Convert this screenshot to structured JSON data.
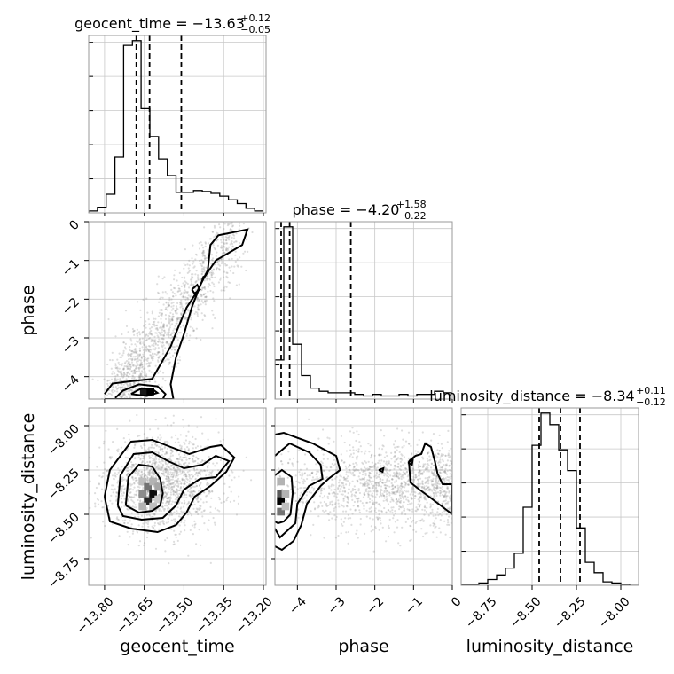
{
  "chart_data": {
    "type": "corner",
    "parameters": [
      "geocent_time",
      "phase",
      "luminosity_distance"
    ],
    "axis_labels": {
      "geocent_time": "geocent_time",
      "phase": "phase",
      "luminosity_distance": "luminosity_distance"
    },
    "ranges": {
      "geocent_time": [
        -13.86,
        -13.19
      ],
      "phase": [
        -4.58,
        0.0
      ],
      "luminosity_distance": [
        -8.9,
        -7.9
      ]
    },
    "ticks": {
      "geocent_time": [
        {
          "v": -13.8,
          "label": "−13.80"
        },
        {
          "v": -13.65,
          "label": "−13.65"
        },
        {
          "v": -13.5,
          "label": "−13.50"
        },
        {
          "v": -13.35,
          "label": "−13.35"
        },
        {
          "v": -13.2,
          "label": "−13.20"
        }
      ],
      "phase": [
        {
          "v": -4,
          "label": "−4"
        },
        {
          "v": -3,
          "label": "−3"
        },
        {
          "v": -2,
          "label": "−2"
        },
        {
          "v": -1,
          "label": "−1"
        },
        {
          "v": 0,
          "label": "0"
        }
      ],
      "luminosity_distance": [
        {
          "v": -8.75,
          "label": "−8.75"
        },
        {
          "v": -8.5,
          "label": "−8.50"
        },
        {
          "v": -8.25,
          "label": "−8.25"
        },
        {
          "v": -8.0,
          "label": "−8.00"
        }
      ]
    },
    "titles": [
      {
        "name": "geocent_time",
        "main": "geocent_time = −13.63",
        "plus": "+0.12",
        "minus": "−0.05"
      },
      {
        "name": "phase",
        "main": "phase = −4.20",
        "plus": "+1.58",
        "minus": "−0.22"
      },
      {
        "name": "luminosity_distance",
        "main": "luminosity_distance = −8.34",
        "plus": "+0.11",
        "minus": "−0.12"
      }
    ],
    "histograms": {
      "geocent_time": {
        "edges_start": -13.86,
        "edges_step": 0.033,
        "counts": [
          2,
          6,
          20,
          60,
          180,
          185,
          112,
          82,
          58,
          40,
          22,
          22,
          24,
          23,
          21,
          18,
          14,
          10,
          5,
          2
        ],
        "quantiles": [
          -13.68,
          -13.63,
          -13.51
        ]
      },
      "phase": {
        "edges_start": -4.58,
        "edges_step": 0.229,
        "counts": [
          25,
          110,
          35,
          15,
          7,
          5,
          4,
          4,
          4,
          3,
          2,
          3,
          2,
          2,
          3,
          2,
          3,
          3,
          5,
          4
        ],
        "quantiles": [
          -4.42,
          -4.2,
          -2.62
        ]
      },
      "luminosity_distance": {
        "edges_start": -8.9,
        "edges_step": 0.05,
        "counts": [
          1,
          1,
          2,
          5,
          9,
          15,
          28,
          68,
          122,
          150,
          140,
          118,
          100,
          50,
          20,
          11,
          3,
          2,
          1,
          0
        ],
        "quantiles": [
          -8.46,
          -8.34,
          -8.23
        ]
      }
    },
    "hist2d_cells": {
      "geocent_time-phase": [
        {
          "x": -13.655,
          "y": -4.36,
          "level": 0.9
        },
        {
          "x": -13.63,
          "y": -4.36,
          "level": 1.0
        }
      ],
      "geocent_time-luminosity_distance": [
        {
          "x": -13.66,
          "y": -8.31,
          "level": 0.25
        },
        {
          "x": -13.66,
          "y": -8.38,
          "level": 0.45
        },
        {
          "x": -13.64,
          "y": -8.34,
          "level": 0.55
        },
        {
          "x": -13.62,
          "y": -8.38,
          "level": 0.95
        },
        {
          "x": -13.64,
          "y": -8.42,
          "level": 0.85
        },
        {
          "x": -13.62,
          "y": -8.31,
          "level": 0.3
        },
        {
          "x": -13.6,
          "y": -8.34,
          "level": 0.35
        },
        {
          "x": -13.66,
          "y": -8.45,
          "level": 0.3
        },
        {
          "x": -13.62,
          "y": -8.45,
          "level": 0.25
        },
        {
          "x": -13.6,
          "y": -8.41,
          "level": 0.2
        }
      ],
      "phase-luminosity_distance": [
        {
          "x": -4.45,
          "y": -8.31,
          "level": 0.3
        },
        {
          "x": -4.45,
          "y": -8.38,
          "level": 0.65
        },
        {
          "x": -4.45,
          "y": -8.42,
          "level": 1.0
        },
        {
          "x": -4.45,
          "y": -8.48,
          "level": 0.55
        },
        {
          "x": -4.33,
          "y": -8.38,
          "level": 0.3
        },
        {
          "x": -4.33,
          "y": -8.45,
          "level": 0.25
        }
      ]
    },
    "contours": {
      "geocent_time-phase": [
        [
          [
            -13.8,
            -4.45
          ],
          [
            -13.77,
            -4.18
          ],
          [
            -13.7,
            -4.12
          ],
          [
            -13.62,
            -4.06
          ],
          [
            -13.58,
            -3.58
          ],
          [
            -13.55,
            -3.22
          ],
          [
            -13.52,
            -2.7
          ],
          [
            -13.49,
            -2.22
          ],
          [
            -13.45,
            -1.8
          ],
          [
            -13.41,
            -1.25
          ],
          [
            -13.4,
            -0.6
          ],
          [
            -13.37,
            -0.35
          ],
          [
            -13.26,
            -0.2
          ],
          [
            -13.28,
            -0.6
          ],
          [
            -13.38,
            -1.0
          ],
          [
            -13.43,
            -1.5
          ],
          [
            -13.47,
            -2.2
          ],
          [
            -13.5,
            -2.9
          ],
          [
            -13.53,
            -3.5
          ],
          [
            -13.55,
            -4.2
          ],
          [
            -13.54,
            -4.58
          ],
          [
            -13.8,
            -4.58
          ]
        ],
        [
          [
            -13.76,
            -4.55
          ],
          [
            -13.73,
            -4.36
          ],
          [
            -13.67,
            -4.2
          ],
          [
            -13.6,
            -4.25
          ],
          [
            -13.57,
            -4.45
          ],
          [
            -13.58,
            -4.58
          ],
          [
            -13.76,
            -4.58
          ]
        ],
        [
          [
            -13.7,
            -4.45
          ],
          [
            -13.66,
            -4.3
          ],
          [
            -13.62,
            -4.32
          ],
          [
            -13.6,
            -4.42
          ],
          [
            -13.64,
            -4.5
          ],
          [
            -13.7,
            -4.45
          ]
        ],
        [
          [
            -13.47,
            -1.75
          ],
          [
            -13.45,
            -1.63
          ],
          [
            -13.44,
            -1.75
          ],
          [
            -13.46,
            -1.85
          ],
          [
            -13.47,
            -1.75
          ]
        ],
        [
          [
            -13.43,
            -1.44
          ],
          [
            -13.42,
            -1.4
          ],
          [
            -13.43,
            -1.47
          ],
          [
            -13.43,
            -1.44
          ]
        ]
      ],
      "geocent_time-luminosity_distance": [
        [
          [
            -13.72,
            -8.45
          ],
          [
            -13.71,
            -8.29
          ],
          [
            -13.67,
            -8.22
          ],
          [
            -13.62,
            -8.23
          ],
          [
            -13.59,
            -8.3
          ],
          [
            -13.58,
            -8.38
          ],
          [
            -13.59,
            -8.45
          ],
          [
            -13.62,
            -8.48
          ],
          [
            -13.67,
            -8.49
          ],
          [
            -13.72,
            -8.45
          ]
        ],
        [
          [
            -13.75,
            -8.45
          ],
          [
            -13.74,
            -8.28
          ],
          [
            -13.69,
            -8.16
          ],
          [
            -13.62,
            -8.15
          ],
          [
            -13.56,
            -8.2
          ],
          [
            -13.5,
            -8.24
          ],
          [
            -13.43,
            -8.22
          ],
          [
            -13.38,
            -8.17
          ],
          [
            -13.33,
            -8.2
          ],
          [
            -13.38,
            -8.29
          ],
          [
            -13.44,
            -8.3
          ],
          [
            -13.5,
            -8.36
          ],
          [
            -13.53,
            -8.45
          ],
          [
            -13.58,
            -8.52
          ],
          [
            -13.66,
            -8.53
          ],
          [
            -13.73,
            -8.51
          ],
          [
            -13.75,
            -8.45
          ]
        ],
        [
          [
            -13.8,
            -8.4
          ],
          [
            -13.78,
            -8.25
          ],
          [
            -13.7,
            -8.09
          ],
          [
            -13.62,
            -8.08
          ],
          [
            -13.55,
            -8.12
          ],
          [
            -13.48,
            -8.16
          ],
          [
            -13.4,
            -8.12
          ],
          [
            -13.36,
            -8.11
          ],
          [
            -13.31,
            -8.18
          ],
          [
            -13.34,
            -8.26
          ],
          [
            -13.4,
            -8.34
          ],
          [
            -13.46,
            -8.4
          ],
          [
            -13.49,
            -8.49
          ],
          [
            -13.53,
            -8.56
          ],
          [
            -13.6,
            -8.6
          ],
          [
            -13.7,
            -8.58
          ],
          [
            -13.78,
            -8.54
          ],
          [
            -13.8,
            -8.4
          ]
        ]
      ],
      "phase-luminosity_distance": [
        [
          [
            -4.58,
            -8.28
          ],
          [
            -4.4,
            -8.25
          ],
          [
            -4.15,
            -8.29
          ],
          [
            -4.12,
            -8.38
          ],
          [
            -4.18,
            -8.5
          ],
          [
            -4.35,
            -8.54
          ],
          [
            -4.5,
            -8.55
          ],
          [
            -4.58,
            -8.54
          ]
        ],
        [
          [
            -4.58,
            -8.17
          ],
          [
            -4.2,
            -8.1
          ],
          [
            -3.7,
            -8.15
          ],
          [
            -3.4,
            -8.22
          ],
          [
            -3.35,
            -8.3
          ],
          [
            -3.7,
            -8.34
          ],
          [
            -4.0,
            -8.44
          ],
          [
            -4.05,
            -8.55
          ],
          [
            -4.3,
            -8.6
          ],
          [
            -4.45,
            -8.63
          ],
          [
            -4.58,
            -8.58
          ]
        ],
        [
          [
            -4.58,
            -8.05
          ],
          [
            -4.35,
            -8.04
          ],
          [
            -3.6,
            -8.1
          ],
          [
            -3.0,
            -8.17
          ],
          [
            -2.9,
            -8.25
          ],
          [
            -3.2,
            -8.3
          ],
          [
            -3.4,
            -8.34
          ],
          [
            -3.75,
            -8.44
          ],
          [
            -3.9,
            -8.56
          ],
          [
            -4.1,
            -8.65
          ],
          [
            -4.4,
            -8.7
          ],
          [
            -4.58,
            -8.68
          ]
        ],
        [
          [
            -1.12,
            -8.2
          ],
          [
            -0.95,
            -8.17
          ],
          [
            -0.8,
            -8.16
          ],
          [
            -0.7,
            -8.1
          ],
          [
            -0.55,
            -8.12
          ],
          [
            -0.45,
            -8.2
          ],
          [
            -0.38,
            -8.27
          ],
          [
            -0.25,
            -8.33
          ],
          [
            0.0,
            -8.33
          ],
          [
            0.0,
            -8.5
          ],
          [
            -0.3,
            -8.45
          ],
          [
            -0.6,
            -8.4
          ],
          [
            -0.85,
            -8.36
          ],
          [
            -1.08,
            -8.32
          ],
          [
            -1.12,
            -8.2
          ]
        ],
        [
          [
            -1.9,
            -8.25
          ],
          [
            -1.78,
            -8.24
          ],
          [
            -1.8,
            -8.26
          ],
          [
            -1.9,
            -8.25
          ]
        ],
        [
          [
            -1.14,
            -8.21
          ],
          [
            -1.02,
            -8.19
          ],
          [
            -1.04,
            -8.22
          ],
          [
            -1.14,
            -8.21
          ]
        ]
      ]
    },
    "scatter_clouds": {
      "geocent_time-phase": {
        "count": 1400,
        "x": [
          -13.86,
          -13.22
        ],
        "y": [
          -4.58,
          0.0
        ],
        "fn": "diag"
      },
      "geocent_time-luminosity_distance": {
        "count": 1500,
        "x_mean": -13.58,
        "x_sd": 0.11,
        "y_mean": -8.33,
        "y_sd": 0.13
      },
      "phase-luminosity_distance": {
        "count": 1500,
        "x": [
          -4.58,
          0.0
        ],
        "y_mean": -8.33,
        "y_sd": 0.12
      }
    }
  }
}
